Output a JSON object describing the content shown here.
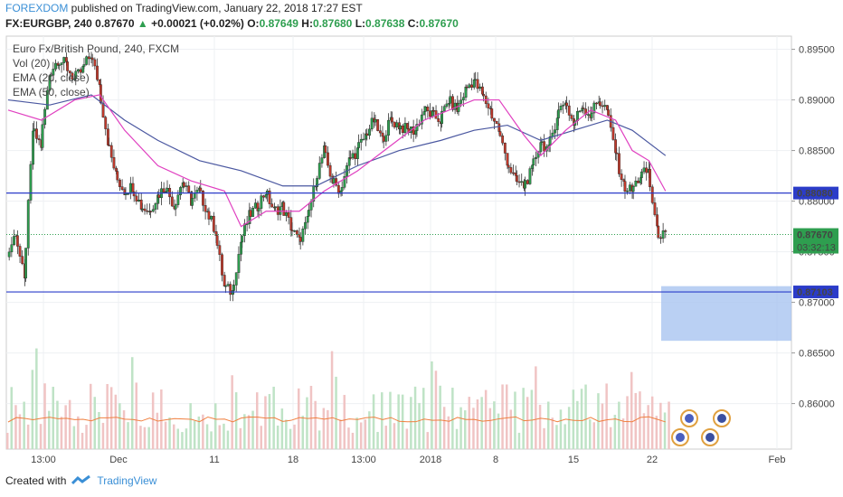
{
  "header": {
    "brand": "FOREXDOM",
    "published": " published on TradingView.com, January 22, 2018 17:27 EST",
    "symbol": "FX:EURGBP, 240",
    "last": "0.87670",
    "arrow": "▲",
    "change": "+0.00021 (+0.02%)",
    "o_label": "O:",
    "o": "0.87649",
    "h_label": "H:",
    "h": "0.87680",
    "l_label": "L:",
    "l": "0.87638",
    "c_label": "C:",
    "c": "0.87670"
  },
  "legend": [
    "Euro Fx/British Pound, 240, FXCM",
    "Vol (20)",
    "EMA (20, close)",
    "EMA (50, close)"
  ],
  "footer": {
    "created": "Created with",
    "tv": "TradingView"
  },
  "colors": {
    "up": "#2e9e4f",
    "down": "#c0392b",
    "ema20": "#e040c0",
    "ema50": "#4a57a0",
    "hline": "#2b3cc9",
    "zone": "#a9c4f0",
    "vol_up": "#bfe3c6",
    "vol_down": "#f0c4c4",
    "vol_avg": "#f08040",
    "last": "#2e9e4f"
  },
  "chart_data": {
    "type": "candlestick",
    "symbol": "EURGBP",
    "timeframe": "240",
    "y_ticks": [
      "0.89500",
      "0.89000",
      "0.88500",
      "0.88000",
      "0.87500",
      "0.87000",
      "0.86500",
      "0.86000"
    ],
    "x_ticks": [
      "13:00",
      "Dec",
      "11",
      "18",
      "13:00",
      "2018",
      "8",
      "15",
      "22",
      "Feb"
    ],
    "ylim": [
      0.8555,
      0.8963
    ],
    "horizontal_levels": [
      {
        "value": 0.8808,
        "label": "0.88080"
      },
      {
        "value": 0.87103,
        "label": "0.87103"
      }
    ],
    "last_price": {
      "value": 0.8767,
      "label": "0.87670",
      "countdown": "03:32:13"
    },
    "target_zone": {
      "from": 0.8716,
      "to": 0.8662
    },
    "close_path": [
      [
        0,
        0.8745
      ],
      [
        1,
        0.877
      ],
      [
        2,
        0.872
      ],
      [
        3,
        0.887
      ],
      [
        4,
        0.8855
      ],
      [
        5,
        0.8925
      ],
      [
        6,
        0.894
      ],
      [
        7,
        0.8935
      ],
      [
        8,
        0.892
      ],
      [
        9,
        0.893
      ],
      [
        10,
        0.8945
      ],
      [
        11,
        0.8915
      ],
      [
        12,
        0.886
      ],
      [
        13,
        0.8825
      ],
      [
        14,
        0.881
      ],
      [
        15,
        0.8815
      ],
      [
        16,
        0.8795
      ],
      [
        17,
        0.879
      ],
      [
        18,
        0.8805
      ],
      [
        19,
        0.8815
      ],
      [
        20,
        0.8795
      ],
      [
        21,
        0.882
      ],
      [
        22,
        0.88
      ],
      [
        23,
        0.881
      ],
      [
        24,
        0.879
      ],
      [
        25,
        0.877
      ],
      [
        26,
        0.8715
      ],
      [
        27,
        0.871
      ],
      [
        28,
        0.876
      ],
      [
        29,
        0.8785
      ],
      [
        30,
        0.8795
      ],
      [
        31,
        0.881
      ],
      [
        32,
        0.879
      ],
      [
        33,
        0.8795
      ],
      [
        34,
        0.8775
      ],
      [
        35,
        0.876
      ],
      [
        36,
        0.878
      ],
      [
        37,
        0.882
      ],
      [
        38,
        0.885
      ],
      [
        39,
        0.882
      ],
      [
        40,
        0.881
      ],
      [
        41,
        0.884
      ],
      [
        42,
        0.885
      ],
      [
        43,
        0.8865
      ],
      [
        44,
        0.888
      ],
      [
        45,
        0.886
      ],
      [
        46,
        0.888
      ],
      [
        47,
        0.8875
      ],
      [
        48,
        0.887
      ],
      [
        49,
        0.887
      ],
      [
        50,
        0.889
      ],
      [
        51,
        0.8885
      ],
      [
        52,
        0.888
      ],
      [
        53,
        0.89
      ],
      [
        54,
        0.889
      ],
      [
        55,
        0.891
      ],
      [
        56,
        0.892
      ],
      [
        57,
        0.8905
      ],
      [
        58,
        0.889
      ],
      [
        59,
        0.887
      ],
      [
        60,
        0.884
      ],
      [
        61,
        0.882
      ],
      [
        62,
        0.8815
      ],
      [
        63,
        0.883
      ],
      [
        64,
        0.886
      ],
      [
        65,
        0.885
      ],
      [
        66,
        0.8885
      ],
      [
        67,
        0.89
      ],
      [
        68,
        0.8875
      ],
      [
        69,
        0.8895
      ],
      [
        70,
        0.8885
      ],
      [
        71,
        0.89
      ],
      [
        72,
        0.889
      ],
      [
        73,
        0.885
      ],
      [
        74,
        0.8815
      ],
      [
        75,
        0.881
      ],
      [
        76,
        0.8825
      ],
      [
        77,
        0.883
      ],
      [
        78,
        0.877
      ],
      [
        79,
        0.8765
      ]
    ],
    "ema20_path": [
      [
        0,
        0.889
      ],
      [
        4,
        0.888
      ],
      [
        8,
        0.89
      ],
      [
        11,
        0.8905
      ],
      [
        14,
        0.887
      ],
      [
        18,
        0.8835
      ],
      [
        22,
        0.882
      ],
      [
        26,
        0.881
      ],
      [
        28,
        0.8775
      ],
      [
        31,
        0.879
      ],
      [
        35,
        0.879
      ],
      [
        38,
        0.881
      ],
      [
        42,
        0.883
      ],
      [
        46,
        0.8855
      ],
      [
        50,
        0.888
      ],
      [
        53,
        0.889
      ],
      [
        56,
        0.89
      ],
      [
        59,
        0.89
      ],
      [
        62,
        0.8865
      ],
      [
        64,
        0.8845
      ],
      [
        67,
        0.887
      ],
      [
        70,
        0.889
      ],
      [
        73,
        0.888
      ],
      [
        75,
        0.885
      ],
      [
        77,
        0.884
      ],
      [
        79,
        0.881
      ]
    ],
    "ema50_path": [
      [
        0,
        0.89
      ],
      [
        5,
        0.8895
      ],
      [
        10,
        0.8905
      ],
      [
        14,
        0.888
      ],
      [
        18,
        0.886
      ],
      [
        23,
        0.884
      ],
      [
        28,
        0.883
      ],
      [
        33,
        0.8815
      ],
      [
        37,
        0.8815
      ],
      [
        42,
        0.8835
      ],
      [
        47,
        0.885
      ],
      [
        52,
        0.886
      ],
      [
        56,
        0.887
      ],
      [
        60,
        0.8875
      ],
      [
        64,
        0.886
      ],
      [
        68,
        0.887
      ],
      [
        72,
        0.888
      ],
      [
        75,
        0.887
      ],
      [
        79,
        0.8845
      ]
    ]
  }
}
